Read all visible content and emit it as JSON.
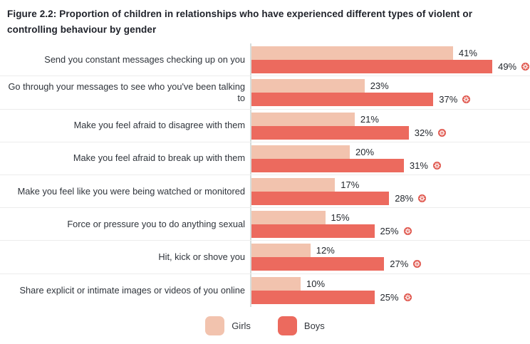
{
  "figure": {
    "title": "Figure 2.2: Proportion of children in relationships who have experienced different types of violent or controlling behaviour by gender"
  },
  "colors": {
    "girls": "#F2C3AE",
    "boys": "#EC6A5E",
    "marker": "#DF5349",
    "axis_line": "#D6DDDB",
    "divider": "#ECECEC",
    "title_text": "#20232B",
    "label_text": "#2F343B"
  },
  "chart_data": {
    "type": "bar",
    "orientation": "horizontal",
    "title": "Figure 2.2: Proportion of children in relationships who have experienced different types of violent or controlling behaviour by gender",
    "value_suffix": "%",
    "legend_position": "bottom",
    "marker_icon": "asterisk-circle-icon",
    "marker_applies_to": "Boys",
    "categories": [
      "Send you constant messages checking up on you",
      "Go through your messages to see who you've been talking to",
      "Make you feel afraid to disagree with them",
      "Make you feel afraid to break up with them",
      "Make you feel like you were being watched or monitored",
      "Force or pressure you to do anything sexual",
      "Hit, kick or shove you",
      "Share explicit or intimate images or videos of you online"
    ],
    "series": [
      {
        "name": "Girls",
        "color": "#F2C3AE",
        "marker": false,
        "values": [
          41,
          23,
          21,
          20,
          17,
          15,
          12,
          10
        ]
      },
      {
        "name": "Boys",
        "color": "#EC6A5E",
        "marker": true,
        "values": [
          49,
          37,
          32,
          31,
          28,
          25,
          27,
          25
        ]
      }
    ]
  },
  "legend": {
    "items": [
      {
        "label": "Girls",
        "color": "#F2C3AE"
      },
      {
        "label": "Boys",
        "color": "#EC6A5E"
      }
    ]
  }
}
